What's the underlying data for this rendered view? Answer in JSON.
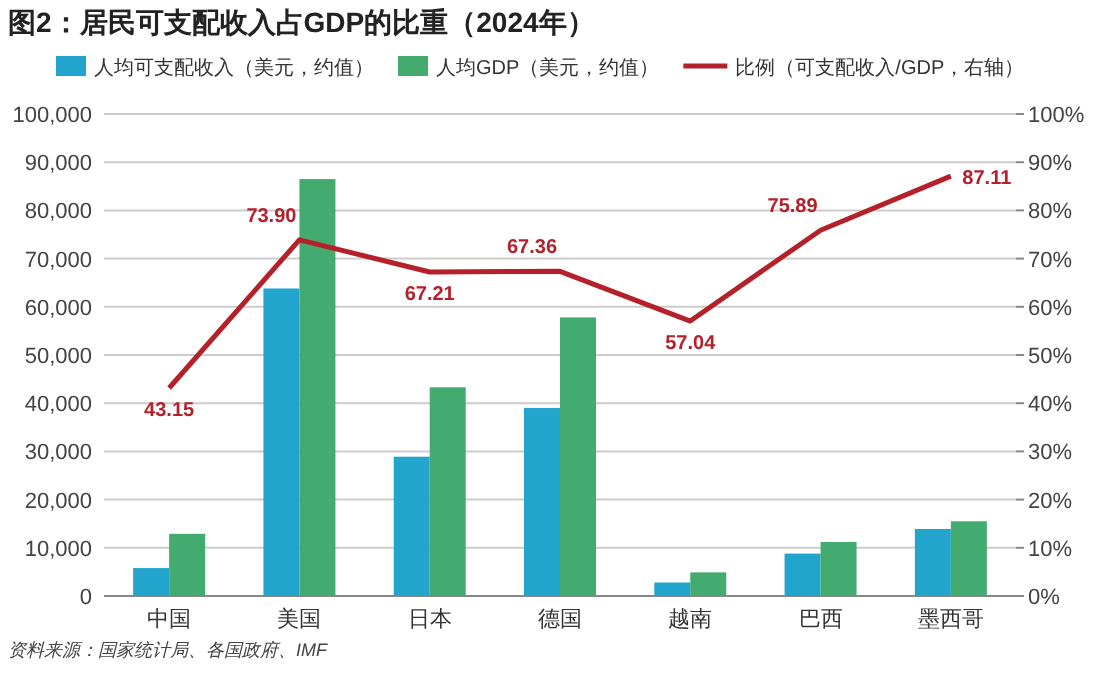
{
  "chart_data": {
    "type": "bar",
    "title": "图2：居民可支配收入占GDP的比重（2024年）",
    "categories": [
      "中国",
      "美国",
      "日本",
      "德国",
      "越南",
      "巴西",
      "墨西哥"
    ],
    "series": [
      {
        "name": "人均可支配收入（美元，约值）",
        "color": "#22a5cd",
        "values": [
          5800,
          63800,
          28900,
          39000,
          2800,
          8800,
          13900
        ]
      },
      {
        "name": "人均GDP（美元，约值）",
        "color": "#44ab70",
        "values": [
          12900,
          86500,
          43300,
          57800,
          4900,
          11200,
          15500
        ]
      },
      {
        "name": "比例（可支配收入/GDP，右轴）",
        "color": "#b5212b",
        "type": "line",
        "axis": "y2",
        "values": [
          43.15,
          73.9,
          67.21,
          67.36,
          57.04,
          75.89,
          87.11
        ],
        "value_labels": [
          "43.15",
          "73.90",
          "67.21",
          "67.36",
          "57.04",
          "75.89",
          "87.11"
        ]
      }
    ],
    "ylim": [
      0,
      100000
    ],
    "yticks": [
      0,
      {
        "value": 10000,
        "label": "10,000"
      },
      {
        "value": 20000,
        "label": "20,000"
      },
      {
        "value": 30000,
        "label": "30,000"
      },
      {
        "value": 40000,
        "label": "40,000"
      },
      {
        "value": 50000,
        "label": "50,000"
      },
      {
        "value": 60000,
        "label": "60,000"
      },
      {
        "value": 70000,
        "label": "70,000"
      },
      {
        "value": 80000,
        "label": "80,000"
      },
      {
        "value": 90000,
        "label": "90,000"
      },
      {
        "value": 100000,
        "label": "100,000"
      }
    ],
    "y2lim": [
      0,
      100
    ],
    "y2ticks": [
      {
        "value": 0,
        "label": "0%"
      },
      {
        "value": 10,
        "label": "10%"
      },
      {
        "value": 20,
        "label": "20%"
      },
      {
        "value": 30,
        "label": "30%"
      },
      {
        "value": 40,
        "label": "40%"
      },
      {
        "value": 50,
        "label": "50%"
      },
      {
        "value": 60,
        "label": "60%"
      },
      {
        "value": 70,
        "label": "70%"
      },
      {
        "value": 80,
        "label": "80%"
      },
      {
        "value": 90,
        "label": "90%"
      },
      {
        "value": 100,
        "label": "100%"
      }
    ],
    "grid": "y",
    "legend": "top",
    "marker": "none",
    "line_style": "solid",
    "annotations": [
      "资料来源：国家统计局、各国政府、IMF"
    ]
  }
}
